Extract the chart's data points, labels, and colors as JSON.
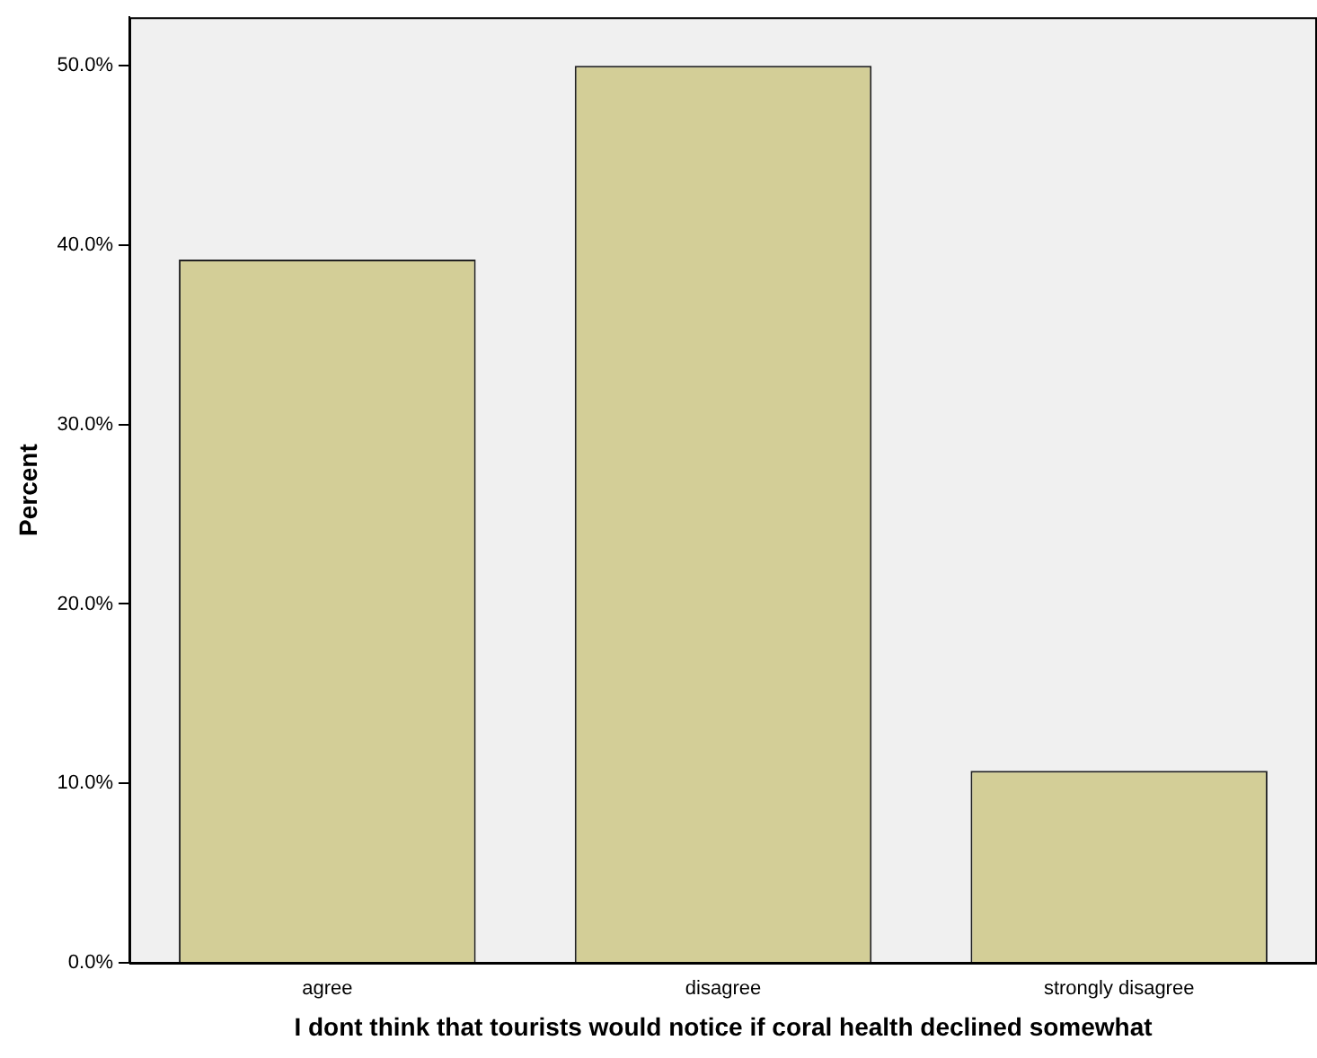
{
  "chart_data": {
    "type": "bar",
    "xlabel": "I dont think that tourists would notice if coral health declined somewhat",
    "ylabel": "Percent",
    "categories": [
      "agree",
      "disagree",
      "strongly disagree"
    ],
    "values": [
      39.2,
      50.0,
      10.7
    ],
    "color": "#d3ce97",
    "ylim": [
      0,
      52.7
    ],
    "yticks": [
      {
        "value": 0,
        "label": "0.0%"
      },
      {
        "value": 10,
        "label": "10.0%"
      },
      {
        "value": 20,
        "label": "20.0%"
      },
      {
        "value": 30,
        "label": "30.0%"
      },
      {
        "value": 40,
        "label": "40.0%"
      },
      {
        "value": 50,
        "label": "50.0%"
      }
    ],
    "grid": false,
    "legend": false
  }
}
